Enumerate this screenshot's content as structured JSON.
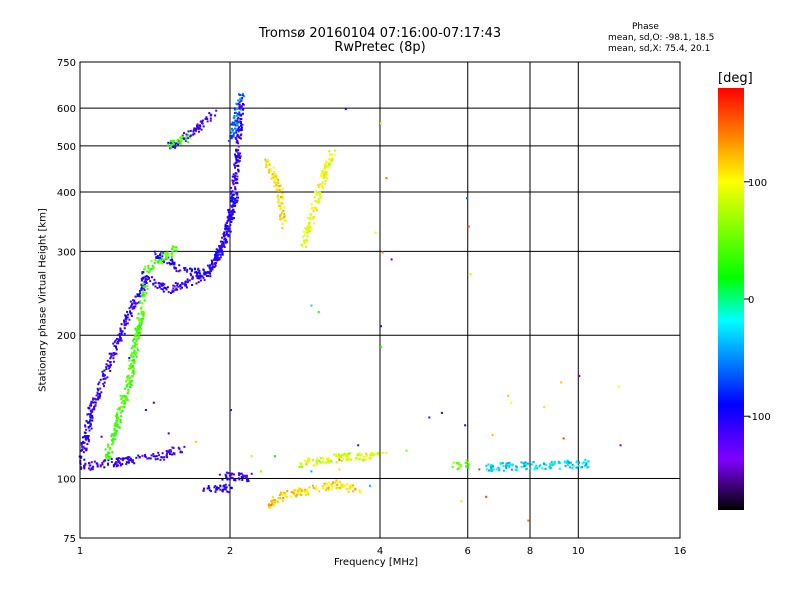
{
  "header": {
    "title_line1": "Tromsø 20160104 07:16:00-07:17:43",
    "title_line2": "RwPretec (8p)",
    "phase_heading": "Phase",
    "phase_stat_o": "mean, sd,O: -98.1, 18.5",
    "phase_stat_x": "mean, sd,X:  75.4, 20.1"
  },
  "colorbar": {
    "unit_label": "[deg]",
    "tick_labels": [
      "100",
      "0",
      "-100"
    ],
    "tick_values": [
      100,
      0,
      -100
    ],
    "range": [
      -180,
      180
    ]
  },
  "chart_data": {
    "type": "scatter",
    "xlabel": "Frequency [MHz]",
    "ylabel": "Stationary phase Virtual Height [km]",
    "x_scale": "log",
    "y_scale": "log",
    "xlim": [
      1,
      16
    ],
    "ylim": [
      75,
      750
    ],
    "x_ticks": [
      1,
      2,
      4,
      6,
      8,
      10,
      16
    ],
    "x_tick_labels": [
      "1",
      "2",
      "4",
      "6",
      "8",
      "10",
      "16"
    ],
    "y_ticks": [
      75,
      100,
      200,
      300,
      400,
      500,
      600,
      750
    ],
    "y_tick_labels": [
      "75",
      "100",
      "200",
      "300",
      "400",
      "500",
      "600",
      "750"
    ],
    "grid_x": [
      2,
      4,
      6,
      8,
      10
    ],
    "grid_y": [
      100,
      200,
      300,
      400,
      500,
      600
    ],
    "color_scale": [
      "#000000",
      "#7f00ff",
      "#0000ff",
      "#00ffff",
      "#00ff00",
      "#ffff00",
      "#ff0000"
    ],
    "series": [
      {
        "segments": [
          [
            1.0,
            106,
            1.45,
            112
          ],
          [
            1.45,
            112,
            1.6,
            116
          ]
        ],
        "phase": -110
      },
      {
        "segments": [
          [
            1.0,
            108,
            1.05,
            140
          ],
          [
            1.05,
            140,
            1.2,
            200
          ],
          [
            1.2,
            200,
            1.28,
            235
          ],
          [
            1.28,
            235,
            1.35,
            265
          ]
        ],
        "phase": -105
      },
      {
        "segments": [
          [
            1.13,
            112,
            1.25,
            160
          ],
          [
            1.25,
            160,
            1.35,
            260
          ]
        ],
        "phase": 40
      },
      {
        "segments": [
          [
            1.32,
            270,
            1.5,
            250
          ],
          [
            1.5,
            250,
            1.75,
            265
          ],
          [
            1.75,
            265,
            1.9,
            300
          ],
          [
            1.9,
            300,
            2.0,
            360
          ],
          [
            2.0,
            360,
            2.06,
            470
          ],
          [
            2.06,
            470,
            2.1,
            640
          ]
        ],
        "phase": -108
      },
      {
        "segments": [
          [
            1.4,
            300,
            1.6,
            275
          ],
          [
            1.6,
            275,
            1.8,
            270
          ],
          [
            1.8,
            270,
            1.95,
            320
          ],
          [
            1.95,
            320,
            2.05,
            400
          ]
        ],
        "phase": -100
      },
      {
        "segments": [
          [
            2.0,
            520,
            2.1,
            640
          ]
        ],
        "phase": -60
      },
      {
        "segments": [
          [
            1.5,
            500,
            1.7,
            540
          ],
          [
            1.7,
            540,
            1.85,
            590
          ]
        ],
        "phase": -110
      },
      {
        "segments": [
          [
            1.5,
            505,
            1.65,
            525
          ]
        ],
        "phase": 40
      },
      {
        "segments": [
          [
            1.35,
            275,
            1.55,
            305
          ]
        ],
        "phase": 40
      },
      {
        "segments": [
          [
            2.8,
            310,
            2.95,
            380
          ],
          [
            2.95,
            380,
            3.2,
            490
          ]
        ],
        "phase": 95
      },
      {
        "segments": [
          [
            2.35,
            470,
            2.5,
            410
          ],
          [
            2.5,
            410,
            2.55,
            340
          ]
        ],
        "phase": 110
      },
      {
        "segments": [
          [
            2.75,
            108,
            3.4,
            112
          ],
          [
            3.4,
            112,
            4.05,
            112
          ]
        ],
        "phase": 85
      },
      {
        "segments": [
          [
            2.6,
            93,
            3.3,
            98
          ],
          [
            3.3,
            98,
            3.6,
            95
          ]
        ],
        "phase": 110
      },
      {
        "segments": [
          [
            5.6,
            107,
            6.0,
            108
          ]
        ],
        "phase": 50
      },
      {
        "segments": [
          [
            6.5,
            106,
            8.5,
            107
          ],
          [
            8.5,
            107,
            10.4,
            108
          ]
        ],
        "phase": -30
      },
      {
        "segments": [
          [
            1.9,
            102,
            2.2,
            101
          ]
        ],
        "phase": -110
      },
      {
        "segments": [
          [
            1.75,
            95,
            2.0,
            96
          ]
        ],
        "phase": -105
      },
      {
        "segments": [
          [
            2.35,
            88,
            2.6,
            94
          ]
        ],
        "phase": 120
      }
    ],
    "scattered_points": [
      [
        1.03,
        137,
        -100
      ],
      [
        1.05,
        128,
        -105
      ],
      [
        1.1,
        123,
        -100
      ],
      [
        1.2,
        150,
        40
      ],
      [
        1.25,
        180,
        -100
      ],
      [
        1.35,
        140,
        -105
      ],
      [
        1.4,
        145,
        -100
      ],
      [
        1.5,
        125,
        -110
      ],
      [
        1.7,
        120,
        120
      ],
      [
        2.0,
        140,
        -120
      ],
      [
        2.2,
        112,
        80
      ],
      [
        2.3,
        104,
        60
      ],
      [
        2.45,
        112,
        20
      ],
      [
        2.9,
        232,
        -30
      ],
      [
        3.0,
        225,
        30
      ],
      [
        3.3,
        110,
        150
      ],
      [
        3.4,
        600,
        -100
      ],
      [
        3.9,
        330,
        90
      ],
      [
        4.0,
        210,
        -110
      ],
      [
        4.0,
        190,
        30
      ],
      [
        4.03,
        300,
        140
      ],
      [
        4.1,
        430,
        140
      ],
      [
        4.0,
        560,
        100
      ],
      [
        4.2,
        290,
        -120
      ],
      [
        4.5,
        115,
        60
      ],
      [
        5.0,
        135,
        -120
      ],
      [
        5.3,
        138,
        -100
      ],
      [
        5.8,
        90,
        110
      ],
      [
        5.9,
        130,
        -110
      ],
      [
        5.95,
        390,
        -60
      ],
      [
        6.0,
        340,
        160
      ],
      [
        6.05,
        270,
        80
      ],
      [
        6.3,
        105,
        160
      ],
      [
        6.5,
        92,
        160
      ],
      [
        6.7,
        124,
        120
      ],
      [
        7.2,
        150,
        120
      ],
      [
        7.3,
        145,
        100
      ],
      [
        7.9,
        82,
        140
      ],
      [
        8.5,
        142,
        110
      ],
      [
        9.2,
        160,
        120
      ],
      [
        9.3,
        122,
        160
      ],
      [
        10.0,
        165,
        -140
      ],
      [
        12.0,
        157,
        100
      ],
      [
        12.1,
        118,
        -140
      ],
      [
        3.6,
        118,
        -110
      ],
      [
        3.8,
        97,
        -40
      ],
      [
        3.3,
        105,
        110
      ],
      [
        2.9,
        104,
        -40
      ]
    ]
  }
}
